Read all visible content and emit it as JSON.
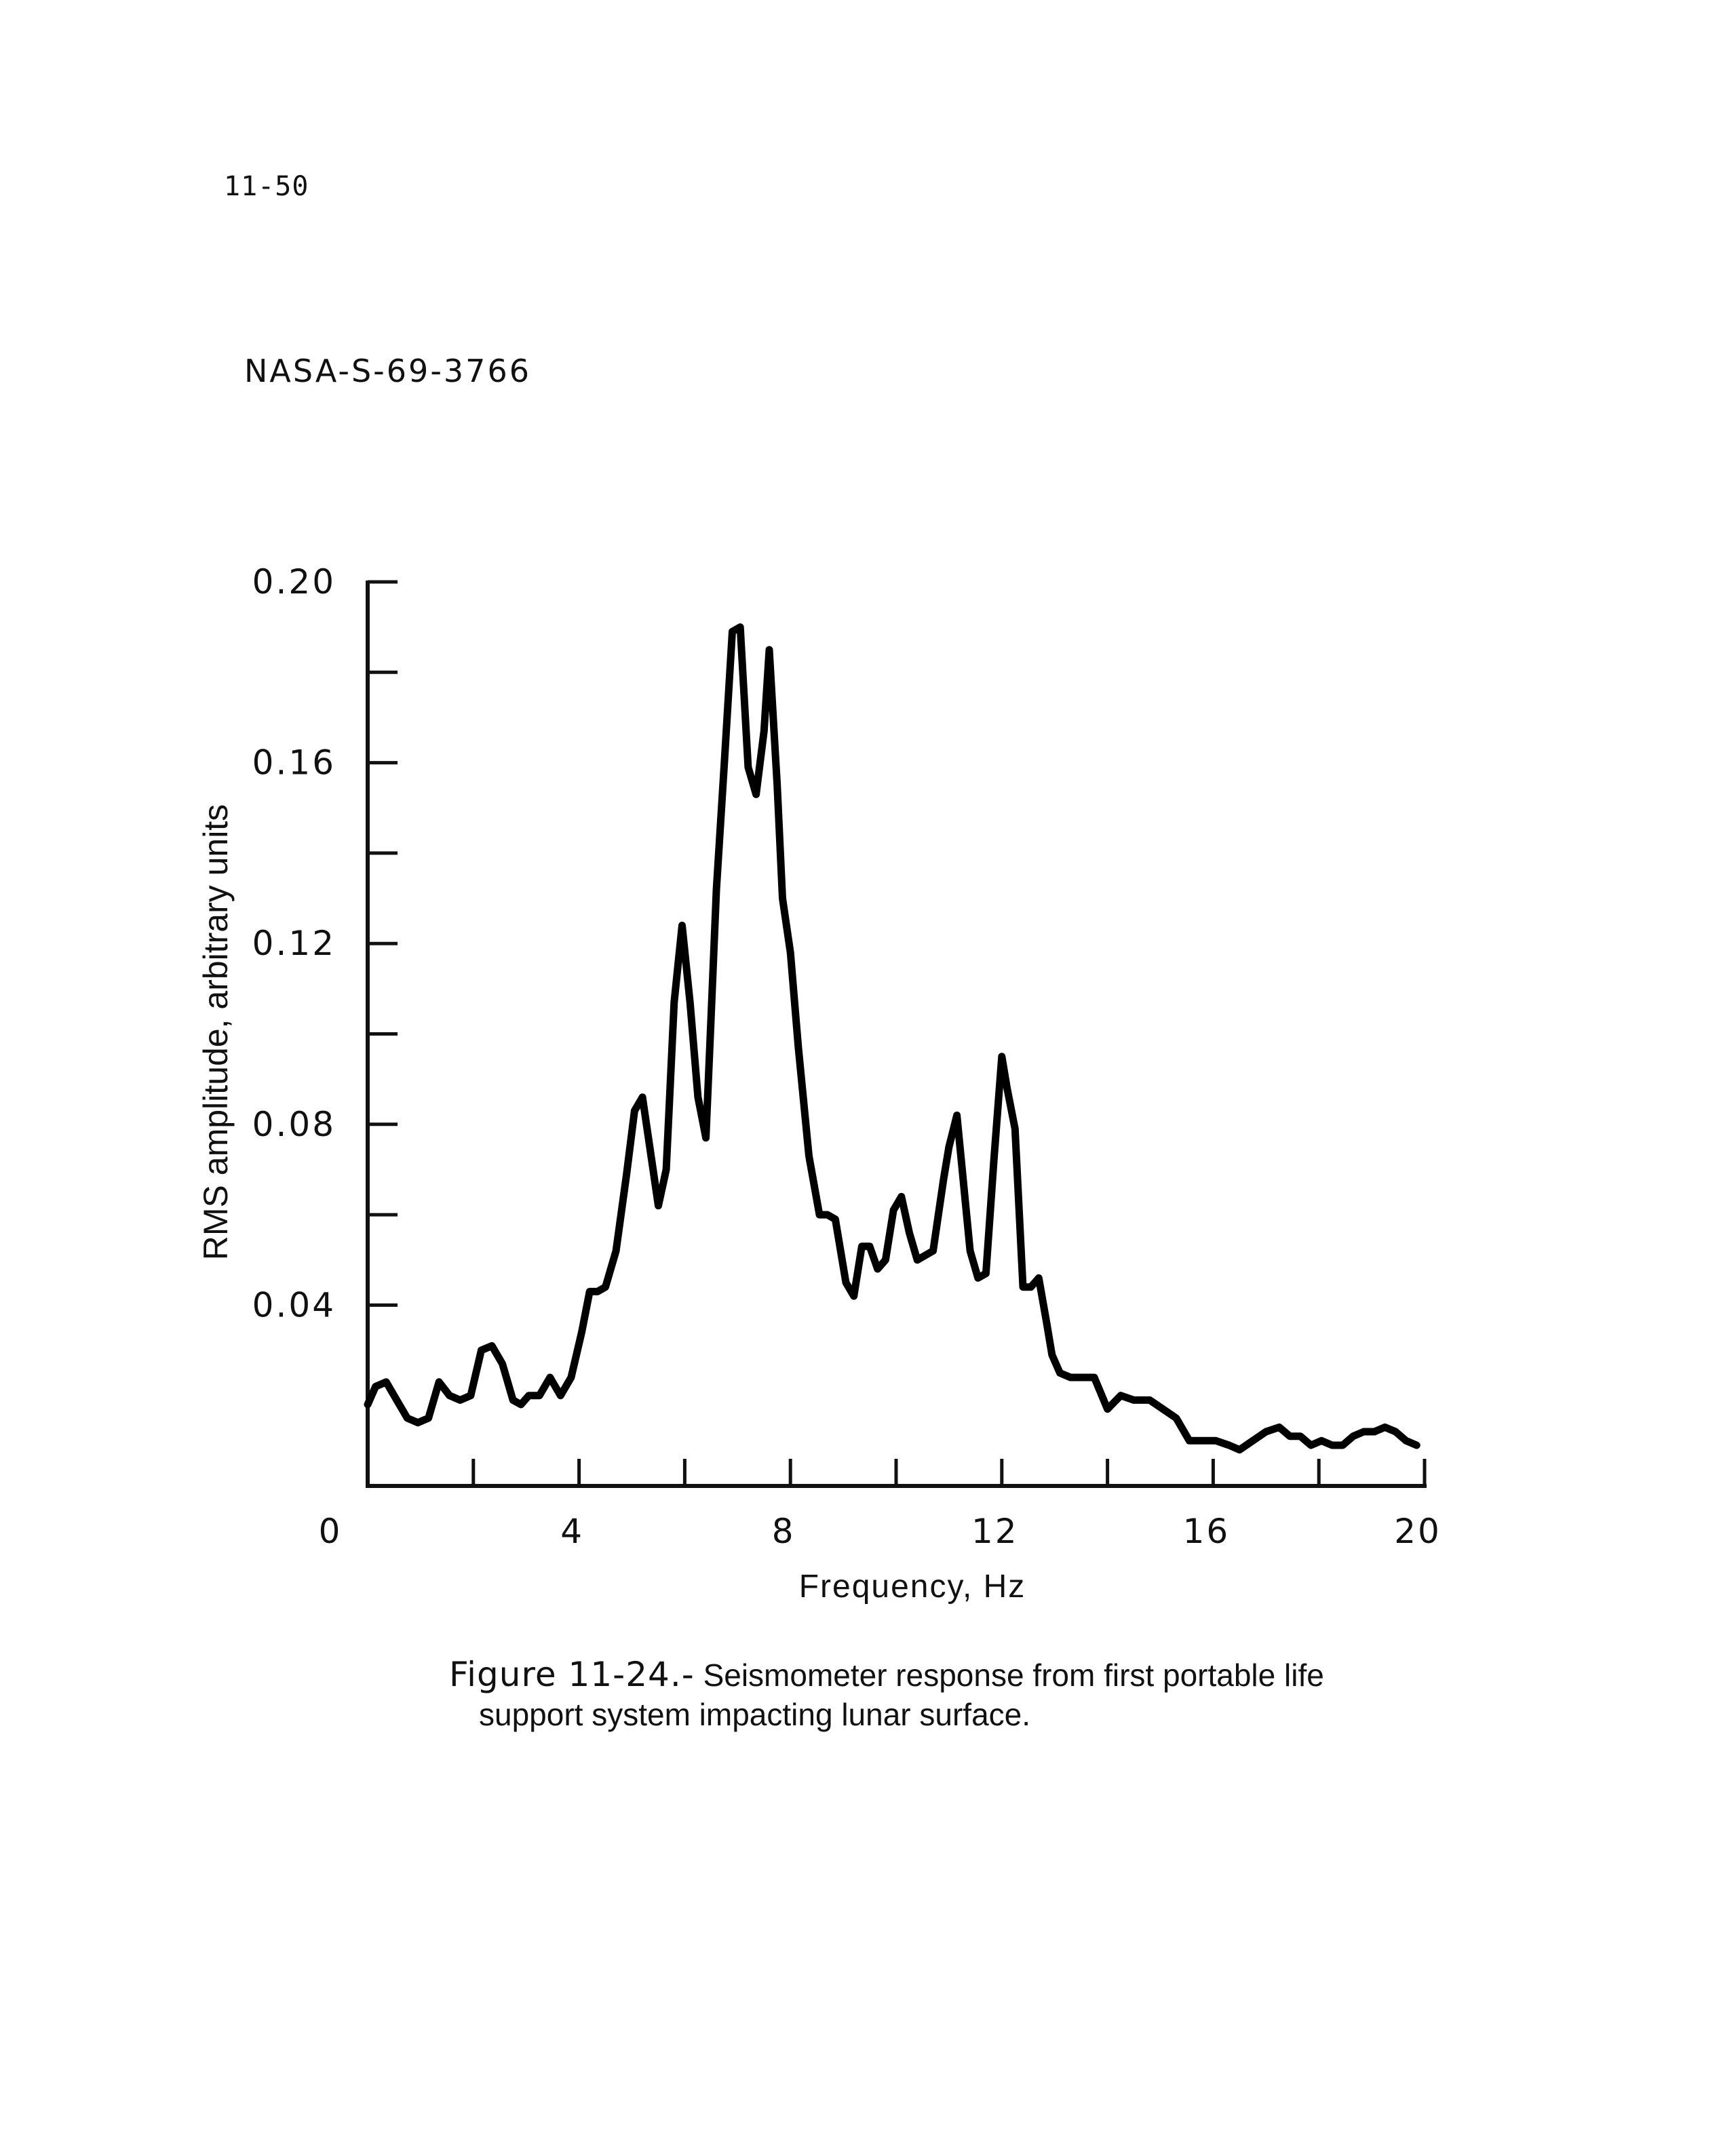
{
  "page": {
    "number": "11-50",
    "document_id": "NASA-S-69-3766",
    "caption_label": "Figure 11-24.-",
    "caption_line1": "Seismometer response from first portable life",
    "caption_line2": "support system impacting lunar surface."
  },
  "chart_data": {
    "type": "line",
    "title": "",
    "xlabel": "Frequency, Hz",
    "ylabel": "RMS amplitude, arbitrary units",
    "xlim": [
      0,
      20
    ],
    "ylim": [
      0,
      0.2
    ],
    "x_ticks": [
      0,
      4,
      8,
      12,
      16,
      20
    ],
    "x_tick_labels": [
      "0",
      "4",
      "8",
      "12",
      "16",
      "20"
    ],
    "x_minor_ticks": [
      2,
      4,
      6,
      8,
      10,
      12,
      14,
      16,
      18,
      20
    ],
    "y_ticks": [
      0.04,
      0.08,
      0.12,
      0.16,
      0.2
    ],
    "y_tick_labels": [
      "0.04",
      "0.08",
      "0.12",
      "0.16",
      "0.20"
    ],
    "y_minor_ticks": [
      0.04,
      0.06,
      0.08,
      0.1,
      0.12,
      0.14,
      0.16,
      0.18,
      0.2
    ],
    "grid": false,
    "line_color": "#000000",
    "series": [
      {
        "x": [
          0.0,
          0.15,
          0.35,
          0.55,
          0.75,
          0.95,
          1.15,
          1.35,
          1.55,
          1.75,
          1.95,
          2.15,
          2.35,
          2.55,
          2.75,
          2.9,
          3.05,
          3.25,
          3.45,
          3.65,
          3.85,
          4.05,
          4.2,
          4.35,
          4.5,
          4.7,
          4.9,
          5.05,
          5.2,
          5.35,
          5.5,
          5.65,
          5.8,
          5.95,
          6.1,
          6.25,
          6.4,
          6.5,
          6.6,
          6.75,
          6.9,
          7.05,
          7.2,
          7.35,
          7.5,
          7.6,
          7.75,
          7.85,
          8.0,
          8.15,
          8.35,
          8.55,
          8.7,
          8.85,
          9.05,
          9.2,
          9.35,
          9.5,
          9.65,
          9.8,
          9.95,
          10.1,
          10.25,
          10.4,
          10.55,
          10.7,
          10.9,
          11.0,
          11.15,
          11.25,
          11.4,
          11.55,
          11.7,
          11.85,
          12.0,
          12.1,
          12.25,
          12.4,
          12.55,
          12.7,
          12.85,
          12.95,
          13.1,
          13.3,
          13.5,
          13.75,
          14.0,
          14.25,
          14.5,
          14.8,
          15.05,
          15.3,
          15.55,
          15.8,
          16.05,
          16.3,
          16.5,
          16.75,
          17.0,
          17.25,
          17.45,
          17.65,
          17.85,
          18.05,
          18.25,
          18.45,
          18.65,
          18.85,
          19.05,
          19.25,
          19.45,
          19.65,
          19.85
        ],
        "values": [
          0.018,
          0.022,
          0.023,
          0.019,
          0.015,
          0.014,
          0.015,
          0.023,
          0.02,
          0.019,
          0.02,
          0.03,
          0.031,
          0.027,
          0.019,
          0.018,
          0.02,
          0.02,
          0.024,
          0.02,
          0.024,
          0.034,
          0.043,
          0.043,
          0.044,
          0.052,
          0.069,
          0.083,
          0.086,
          0.074,
          0.062,
          0.07,
          0.107,
          0.124,
          0.107,
          0.086,
          0.077,
          0.104,
          0.132,
          0.16,
          0.189,
          0.19,
          0.159,
          0.153,
          0.167,
          0.185,
          0.155,
          0.13,
          0.118,
          0.097,
          0.073,
          0.06,
          0.06,
          0.059,
          0.045,
          0.042,
          0.053,
          0.053,
          0.048,
          0.05,
          0.061,
          0.064,
          0.056,
          0.05,
          0.051,
          0.052,
          0.068,
          0.075,
          0.082,
          0.07,
          0.052,
          0.046,
          0.047,
          0.072,
          0.095,
          0.088,
          0.079,
          0.044,
          0.044,
          0.046,
          0.036,
          0.029,
          0.025,
          0.024,
          0.024,
          0.024,
          0.017,
          0.02,
          0.019,
          0.019,
          0.017,
          0.015,
          0.01,
          0.01,
          0.01,
          0.009,
          0.008,
          0.01,
          0.012,
          0.013,
          0.011,
          0.011,
          0.009,
          0.01,
          0.009,
          0.009,
          0.011,
          0.012,
          0.012,
          0.013,
          0.012,
          0.01,
          0.009
        ]
      }
    ]
  }
}
